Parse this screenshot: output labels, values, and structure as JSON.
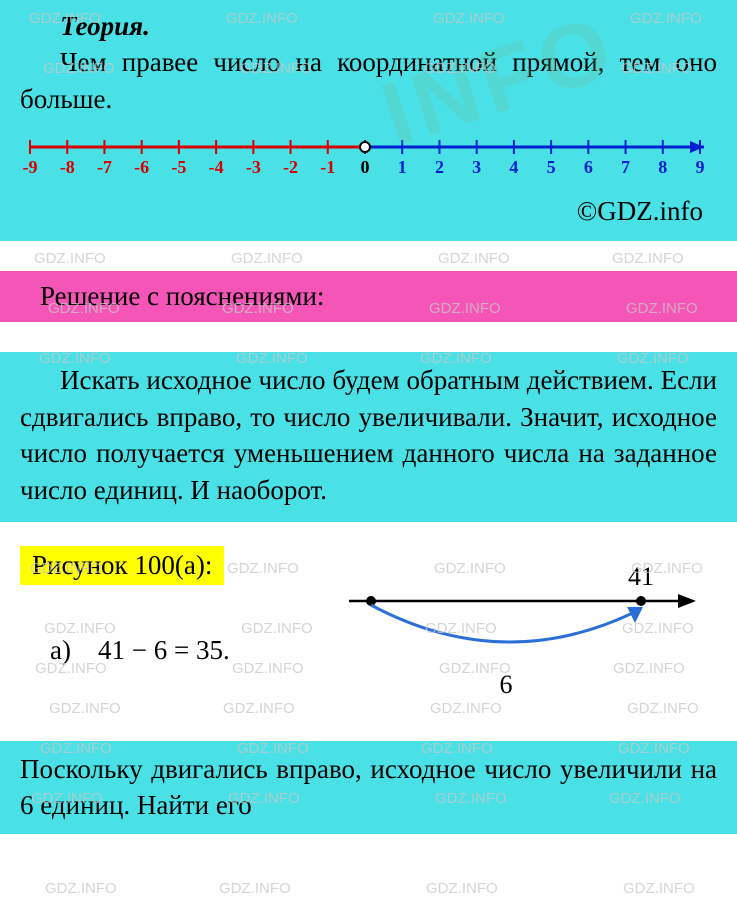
{
  "theory": {
    "title": "Теория.",
    "body": "Чем правее число на координатной прямой, тем оно больше.",
    "credit": "©GDZ.info"
  },
  "numberline": {
    "min": -9,
    "max": 9,
    "neg_color": "#d60000",
    "pos_color": "#0020d0",
    "zero_color": "#000000",
    "axis_bg": "#4ae1e6"
  },
  "solution_header": "Решение с пояснениями:",
  "explanation": "Искать исходное число будем обратным действием. Если сдвигались вправо, то число увеличивали. Значит, исходное число получается уменьшением данного числа на заданное число единиц. И наоборот.",
  "figure": {
    "label": "Рисунок 100(а):",
    "item_letter": "а)",
    "equation": "41 − 6 = 35.",
    "diagram": {
      "end_value": "41",
      "arc_label": "6",
      "caption": "а",
      "line_color": "#000000",
      "arc_color": "#2a6fd6",
      "dot_color": "#000000"
    }
  },
  "footer_text": "Поскольку двигались вправо, исходное число увеличили на 6 единиц. Найти его",
  "watermark": {
    "text": "GDZ.INFO",
    "big_text": "INFO",
    "color": "#c8c8c8",
    "fontsize": 15
  },
  "colors": {
    "teal": "#4ae1e6",
    "pink": "#f455b7",
    "yellow": "#ffff00",
    "white": "#ffffff"
  }
}
